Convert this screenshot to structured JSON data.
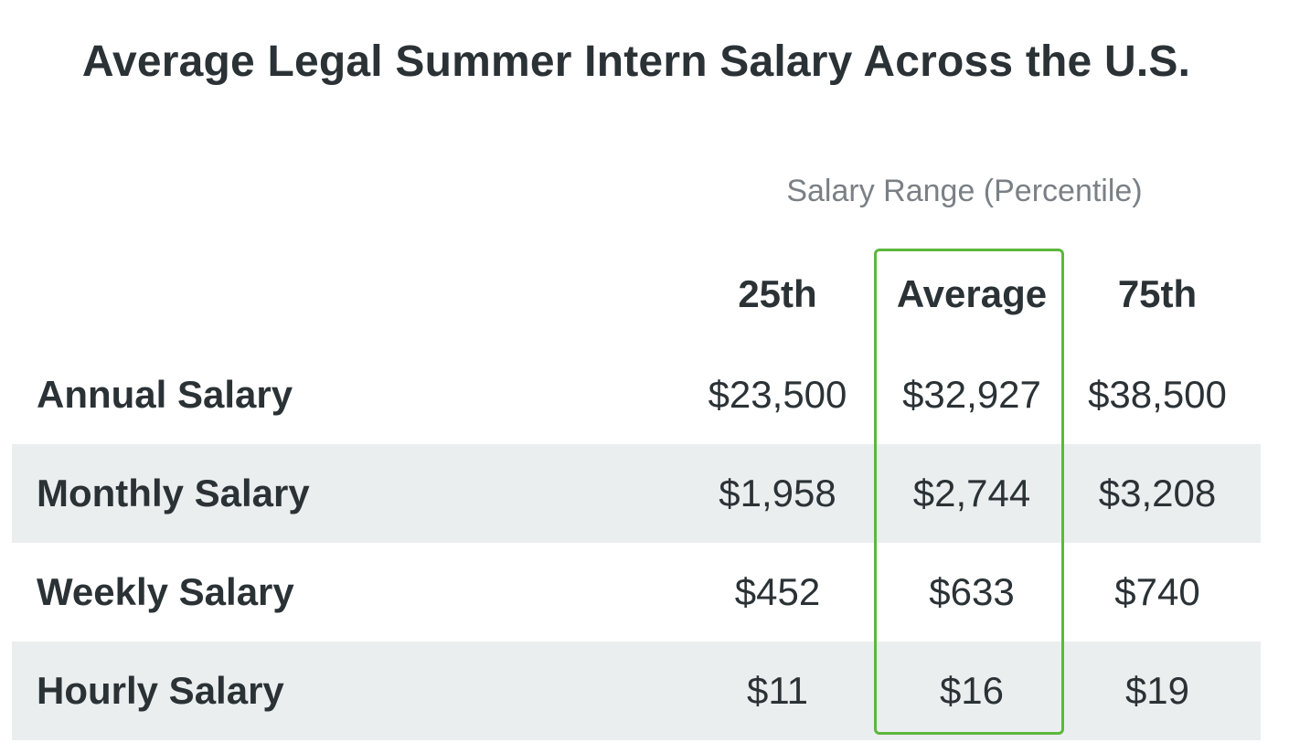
{
  "title": "Average Legal Summer Intern Salary Across the U.S.",
  "subheader": "Salary Range (Percentile)",
  "columns": [
    "25th",
    "Average",
    "75th"
  ],
  "rows": [
    {
      "label": "Annual Salary",
      "p25": "$23,500",
      "avg": "$32,927",
      "p75": "$38,500"
    },
    {
      "label": "Monthly Salary",
      "p25": "$1,958",
      "avg": "$2,744",
      "p75": "$3,208"
    },
    {
      "label": "Weekly Salary",
      "p25": "$452",
      "avg": "$633",
      "p75": "$740"
    },
    {
      "label": "Hourly Salary",
      "p25": "$11",
      "avg": "$16",
      "p75": "$19"
    }
  ],
  "colors": {
    "highlight_border": "#5cb83c",
    "row_shade": "#ebeeef",
    "text": "#2b3236",
    "subtext": "#7a8085"
  }
}
